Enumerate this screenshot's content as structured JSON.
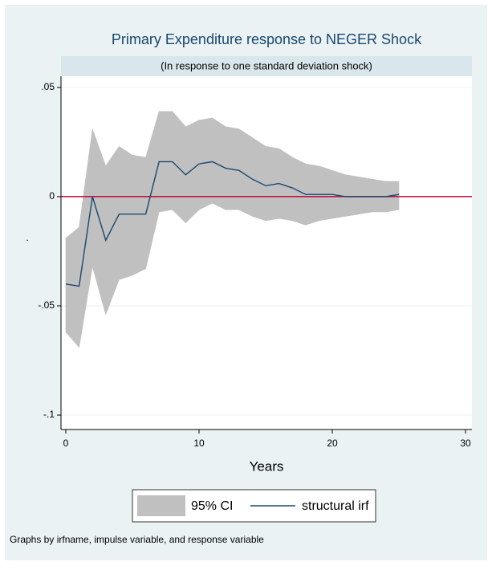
{
  "chart_data": {
    "type": "irf",
    "title": "Primary Expenditure response to NEGER Shock",
    "subtitle": "(In response to one standard deviation shock)",
    "x_label": "Years",
    "y_label": ".",
    "note": "Graphs by irfname, impulse variable, and response variable",
    "x": [
      0,
      1,
      2,
      3,
      4,
      5,
      6,
      7,
      8,
      9,
      10,
      11,
      12,
      13,
      14,
      15,
      16,
      17,
      18,
      19,
      20,
      21,
      22,
      23,
      24,
      25
    ],
    "series": [
      {
        "name": "95% CI",
        "color": "#c0c0c0",
        "lower": [
          -0.062,
          -0.069,
          -0.032,
          -0.054,
          -0.038,
          -0.036,
          -0.033,
          -0.007,
          -0.006,
          -0.012,
          -0.006,
          -0.003,
          -0.006,
          -0.006,
          -0.009,
          -0.011,
          -0.01,
          -0.011,
          -0.013,
          -0.011,
          -0.01,
          -0.009,
          -0.008,
          -0.007,
          -0.007,
          -0.006
        ],
        "upper": [
          -0.019,
          -0.014,
          0.031,
          0.014,
          0.023,
          0.019,
          0.018,
          0.039,
          0.039,
          0.032,
          0.035,
          0.036,
          0.032,
          0.031,
          0.027,
          0.023,
          0.022,
          0.018,
          0.015,
          0.014,
          0.012,
          0.01,
          0.009,
          0.008,
          0.007,
          0.007
        ]
      },
      {
        "name": "structural irf",
        "color": "#1a476f",
        "values": [
          -0.04,
          -0.041,
          0,
          -0.02,
          -0.008,
          -0.008,
          -0.008,
          0.016,
          0.016,
          0.01,
          0.015,
          0.016,
          0.013,
          0.012,
          0.008,
          0.005,
          0.006,
          0.004,
          0.001,
          0.001,
          0.001,
          0,
          0,
          0,
          0,
          0.001
        ]
      }
    ],
    "reference_line": {
      "y": 0,
      "color": "#c10534"
    },
    "xlim": [
      -0.36,
      30.48
    ],
    "ylim": [
      -0.1066,
      0.0551
    ],
    "xticks": [
      0,
      10,
      20,
      30
    ],
    "yticks": [
      {
        "value": 0.05,
        "label": ".05"
      },
      0,
      {
        "value": -0.05,
        "label": "-.05"
      },
      {
        "value": -0.1,
        "label": "-.1"
      }
    ],
    "grid": true,
    "legend": "bottom"
  }
}
